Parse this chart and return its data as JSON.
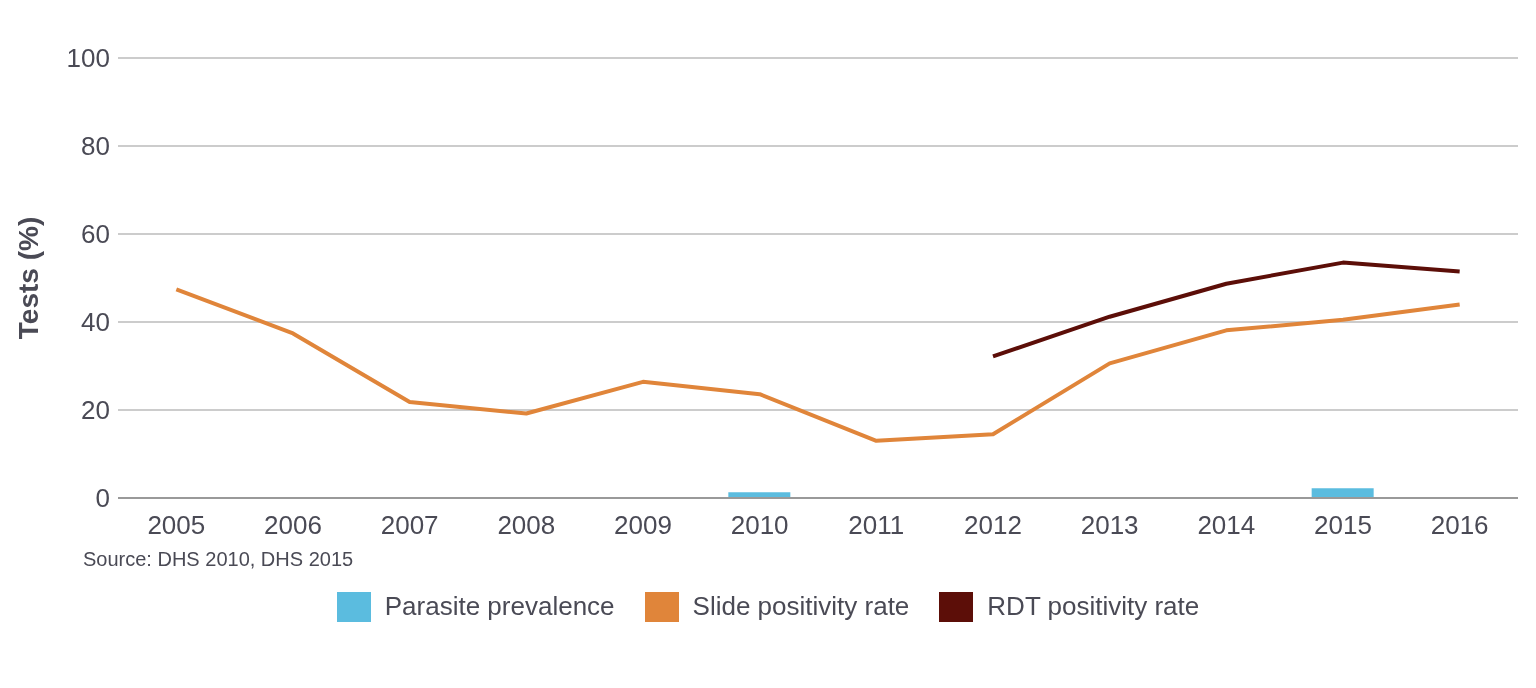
{
  "chart_data": {
    "type": "line",
    "ylabel": "Tests (%)",
    "categories": [
      "2005",
      "2006",
      "2007",
      "2008",
      "2009",
      "2010",
      "2011",
      "2012",
      "2013",
      "2014",
      "2015",
      "2016"
    ],
    "series": [
      {
        "name": "Parasite prevalence",
        "type": "bar",
        "color": "#5bbcdf",
        "values": [
          null,
          null,
          null,
          null,
          null,
          1.3,
          null,
          null,
          null,
          null,
          2.2,
          null
        ]
      },
      {
        "name": "Slide positivity rate",
        "color": "#e0853a",
        "values": [
          47.4,
          37.4,
          21.8,
          19.2,
          26.4,
          23.6,
          13,
          14.5,
          30.6,
          38.1,
          40.5,
          44
        ]
      },
      {
        "name": "RDT positivity rate",
        "color": "#5c0e08",
        "values": [
          null,
          null,
          null,
          null,
          null,
          null,
          null,
          32.2,
          41.2,
          48.7,
          53.5,
          51.5
        ]
      }
    ],
    "ylim": [
      0,
      100
    ],
    "yticks": [
      0,
      20,
      40,
      60,
      80,
      100
    ],
    "grid": "y",
    "legend": "bottom",
    "marker": "none",
    "line_style": "solid",
    "annotations": [
      "Source: DHS 2010, DHS 2015"
    ]
  }
}
